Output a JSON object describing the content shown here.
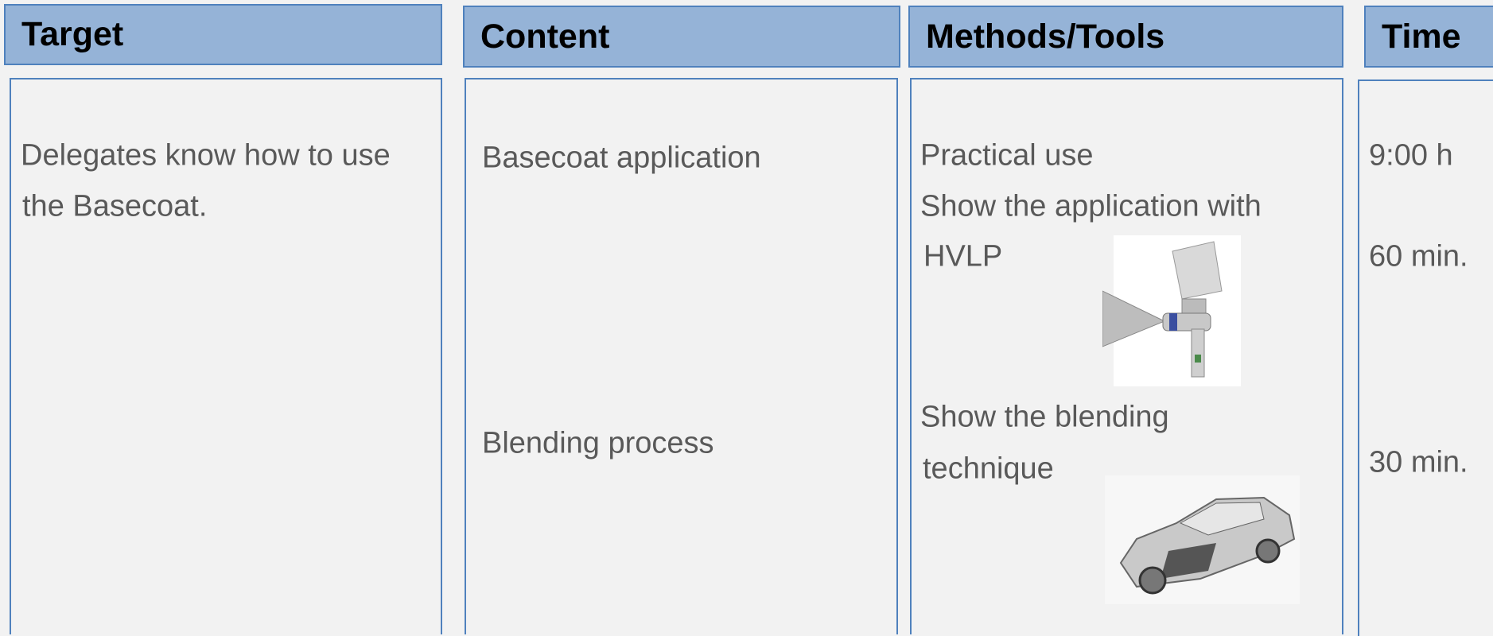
{
  "columns": [
    {
      "header": "Target",
      "lines": [
        "Delegates know how to use",
        "the Basecoat."
      ]
    },
    {
      "header": "Content",
      "lines": [
        "Basecoat application",
        "Blending process"
      ]
    },
    {
      "header": "Methods/Tools",
      "lines": [
        "Practical use",
        "Show the application with",
        "HVLP",
        "Show the blending",
        "technique"
      ]
    },
    {
      "header": "Time",
      "lines": [
        "9:00 h",
        "60 min.",
        "30 min."
      ]
    }
  ]
}
